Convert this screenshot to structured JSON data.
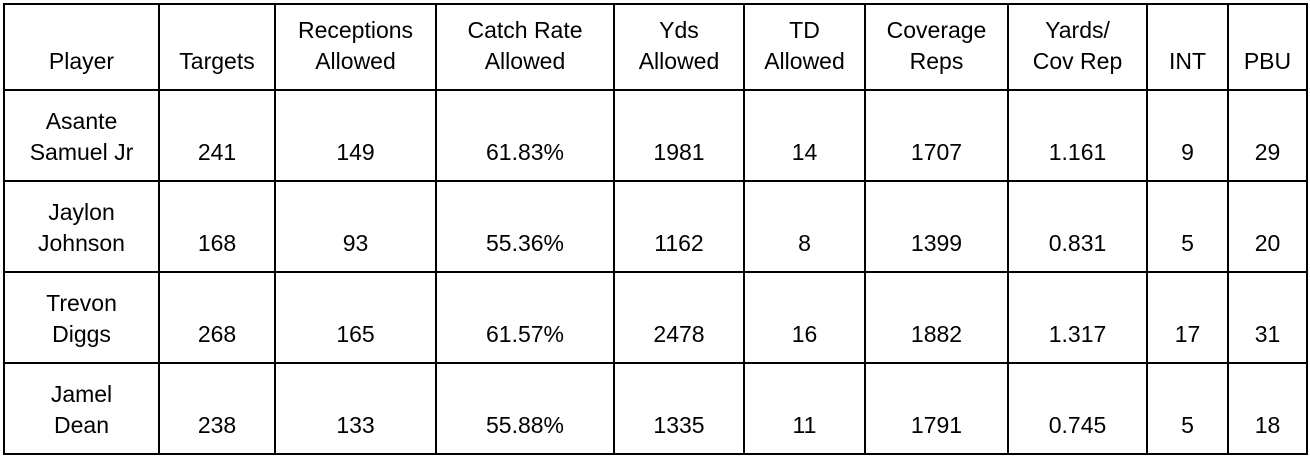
{
  "colors": {
    "background": "#ffffff",
    "border": "#000000",
    "text": "#000000"
  },
  "chart_data": {
    "type": "table",
    "title": "",
    "columns": [
      "Player",
      "Targets",
      "Receptions Allowed",
      "Catch Rate Allowed",
      "Yds Allowed",
      "TD Allowed",
      "Coverage Reps",
      "Yards/Cov Rep",
      "INT",
      "PBU"
    ],
    "rows": [
      [
        "Asante Samuel Jr",
        241,
        149,
        "61.83%",
        1981,
        14,
        1707,
        1.161,
        9,
        29
      ],
      [
        "Jaylon Johnson",
        168,
        93,
        "55.36%",
        1162,
        8,
        1399,
        0.831,
        5,
        20
      ],
      [
        "Trevon Diggs",
        268,
        165,
        "61.57%",
        2478,
        16,
        1882,
        1.317,
        17,
        31
      ],
      [
        "Jamel Dean",
        238,
        133,
        "55.88%",
        1335,
        11,
        1791,
        0.745,
        5,
        18
      ]
    ]
  },
  "table": {
    "headers_display": [
      "Player",
      "Targets",
      "Receptions\nAllowed",
      "Catch Rate\nAllowed",
      "Yds\nAllowed",
      "TD\nAllowed",
      "Coverage\nReps",
      "Yards/\nCov Rep",
      "INT",
      "PBU"
    ],
    "rows_display": [
      [
        "Asante\nSamuel Jr",
        "241",
        "149",
        "61.83%",
        "1981",
        "14",
        "1707",
        "1.161",
        "9",
        "29"
      ],
      [
        "Jaylon\nJohnson",
        "168",
        "93",
        "55.36%",
        "1162",
        "8",
        "1399",
        "0.831",
        "5",
        "20"
      ],
      [
        "Trevon\nDiggs",
        "268",
        "165",
        "61.57%",
        "2478",
        "16",
        "1882",
        "1.317",
        "17",
        "31"
      ],
      [
        "Jamel\nDean",
        "238",
        "133",
        "55.88%",
        "1335",
        "11",
        "1791",
        "0.745",
        "5",
        "18"
      ]
    ]
  }
}
